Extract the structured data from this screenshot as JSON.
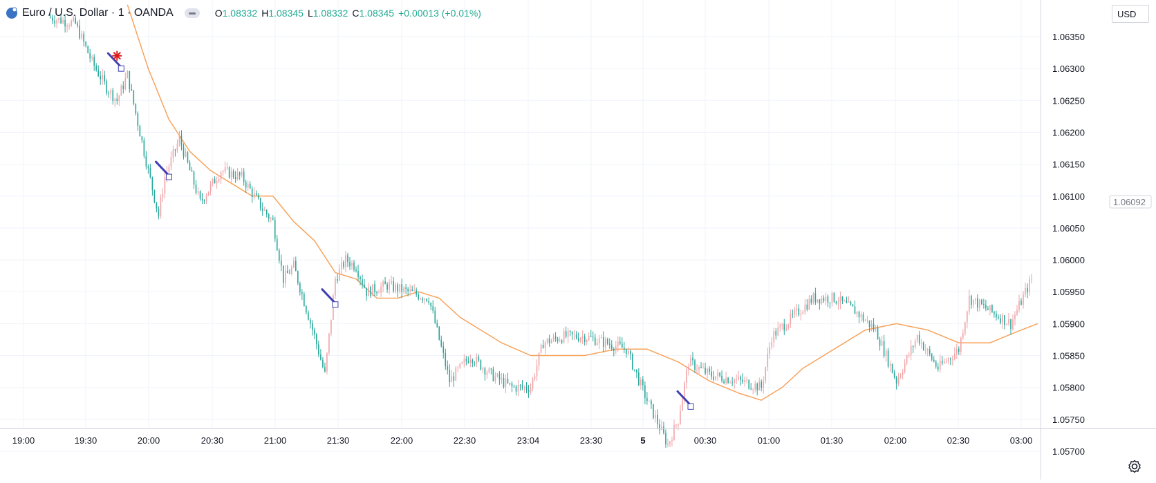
{
  "legend": {
    "title": "Euro / U.S. Dollar · 1 · OANDA",
    "open_label": "O",
    "open": "1.08332",
    "high_label": "H",
    "high": "1.08345",
    "low_label": "L",
    "low": "1.08332",
    "close_label": "C",
    "close": "1.08345",
    "change": "+0.00013 (+0.01%)"
  },
  "currency_button": "USD",
  "price_tag": "1.06092",
  "icons": {
    "symbol_logo": "euro-flag-icon",
    "visibility": "eye-toggle-icon",
    "settings": "gear-icon",
    "trade_signal": "star-marker-icon"
  },
  "colors": {
    "up": "#f0a3a6",
    "down": "#26a69a",
    "ma": "#f7a35c",
    "grid": "#f0f3fa",
    "signal": "#3f3fb5",
    "star": "#d81b1b",
    "positive": "#22ab94"
  },
  "chart_data": {
    "type": "candlestick",
    "timeframe": "1 minute",
    "ylim": [
      1.0567,
      1.064
    ],
    "y_ticks": [
      "1.06350",
      "1.06300",
      "1.06250",
      "1.06200",
      "1.06150",
      "1.06100",
      "1.06050",
      "1.06000",
      "1.05950",
      "1.05900",
      "1.05850",
      "1.05800",
      "1.05750",
      "1.05700"
    ],
    "x_ticks": [
      "19:00",
      "19:30",
      "20:00",
      "20:30",
      "21:00",
      "21:30",
      "22:00",
      "22:30",
      "23:04",
      "23:30",
      "5",
      "00:30",
      "01:00",
      "01:30",
      "02:00",
      "02:30",
      "03:00"
    ],
    "price_path": [
      [
        "19:13",
        1.0638
      ],
      [
        "19:25",
        1.0637
      ],
      [
        "19:33",
        1.0631
      ],
      [
        "19:40",
        1.0627
      ],
      [
        "19:45",
        1.0625
      ],
      [
        "19:50",
        1.0629
      ],
      [
        "19:52",
        1.0626
      ],
      [
        "20:00",
        1.0614
      ],
      [
        "20:05",
        1.0607
      ],
      [
        "20:08",
        1.0613
      ],
      [
        "20:15",
        1.0619
      ],
      [
        "20:25",
        1.0609
      ],
      [
        "20:35",
        1.0614
      ],
      [
        "20:45",
        1.0613
      ],
      [
        "20:55",
        1.0608
      ],
      [
        "21:00",
        1.0606
      ],
      [
        "21:05",
        1.0597
      ],
      [
        "21:10",
        1.0599
      ],
      [
        "21:20",
        1.0588
      ],
      [
        "21:25",
        1.0582
      ],
      [
        "21:30",
        1.0597
      ],
      [
        "21:35",
        1.06
      ],
      [
        "21:40",
        1.0599
      ],
      [
        "21:45",
        1.0595
      ],
      [
        "21:55",
        1.0596
      ],
      [
        "22:05",
        1.0595
      ],
      [
        "22:15",
        1.0594
      ],
      [
        "22:25",
        1.0581
      ],
      [
        "22:35",
        1.0585
      ],
      [
        "22:45",
        1.0582
      ],
      [
        "22:55",
        1.058
      ],
      [
        "23:04",
        1.058
      ],
      [
        "23:10",
        1.0587
      ],
      [
        "23:20",
        1.0588
      ],
      [
        "23:30",
        1.0588
      ],
      [
        "23:40",
        1.0587
      ],
      [
        "23:50",
        1.0586
      ],
      [
        "00:00",
        1.0578
      ],
      [
        "00:10",
        1.0571
      ],
      [
        "00:15",
        1.0575
      ],
      [
        "00:20",
        1.0584
      ],
      [
        "00:30",
        1.0582
      ],
      [
        "00:45",
        1.0581
      ],
      [
        "00:55",
        1.058
      ],
      [
        "01:00",
        1.0588
      ],
      [
        "01:10",
        1.0591
      ],
      [
        "01:20",
        1.0594
      ],
      [
        "01:30",
        1.0594
      ],
      [
        "01:40",
        1.0592
      ],
      [
        "01:50",
        1.0589
      ],
      [
        "02:00",
        1.0581
      ],
      [
        "02:10",
        1.0588
      ],
      [
        "02:20",
        1.0583
      ],
      [
        "02:30",
        1.0586
      ],
      [
        "02:35",
        1.0594
      ],
      [
        "02:45",
        1.0592
      ],
      [
        "02:55",
        1.059
      ],
      [
        "03:05",
        1.0597
      ]
    ],
    "moving_average": [
      [
        "19:50",
        1.064
      ],
      [
        "20:00",
        1.063
      ],
      [
        "20:10",
        1.0622
      ],
      [
        "20:20",
        1.0617
      ],
      [
        "20:30",
        1.0614
      ],
      [
        "20:40",
        1.0612
      ],
      [
        "20:50",
        1.061
      ],
      [
        "21:00",
        1.061
      ],
      [
        "21:10",
        1.0606
      ],
      [
        "21:20",
        1.0603
      ],
      [
        "21:30",
        1.0598
      ],
      [
        "21:40",
        1.0597
      ],
      [
        "21:50",
        1.0594
      ],
      [
        "22:00",
        1.0594
      ],
      [
        "22:10",
        1.0595
      ],
      [
        "22:20",
        1.0594
      ],
      [
        "22:30",
        1.0591
      ],
      [
        "22:40",
        1.0589
      ],
      [
        "22:50",
        1.0587
      ],
      [
        "23:04",
        1.0585
      ],
      [
        "23:15",
        1.0585
      ],
      [
        "23:30",
        1.0585
      ],
      [
        "23:45",
        1.0586
      ],
      [
        "00:00",
        1.0586
      ],
      [
        "00:15",
        1.0584
      ],
      [
        "00:30",
        1.0581
      ],
      [
        "00:45",
        1.0579
      ],
      [
        "00:55",
        1.0578
      ],
      [
        "01:05",
        1.058
      ],
      [
        "01:15",
        1.0583
      ],
      [
        "01:30",
        1.0586
      ],
      [
        "01:45",
        1.0589
      ],
      [
        "02:00",
        1.059
      ],
      [
        "02:15",
        1.0589
      ],
      [
        "02:30",
        1.0587
      ],
      [
        "02:45",
        1.0587
      ],
      [
        "03:00",
        1.0589
      ],
      [
        "03:08",
        1.059
      ]
    ],
    "signals": [
      {
        "time": "19:47",
        "price": 1.063
      },
      {
        "time": "20:10",
        "price": 1.0613
      },
      {
        "time": "21:30",
        "price": 1.0593
      },
      {
        "time": "00:21",
        "price": 1.0577
      }
    ],
    "entry_marker": {
      "time": "19:45",
      "price": 1.0632
    },
    "grid": true
  }
}
